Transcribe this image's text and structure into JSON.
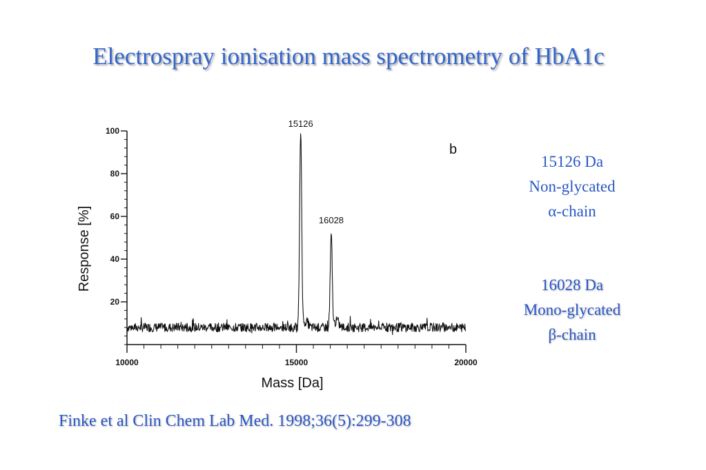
{
  "slide": {
    "title": "Electrospray ionisation mass spectrometry of HbA1c",
    "citation": "Finke et al Clin Chem Lab Med. 1998;36(5):299-308"
  },
  "annotations": [
    {
      "lines": [
        "15126 Da",
        "Non-glycated",
        "α-chain"
      ]
    },
    {
      "lines": [
        "16028 Da",
        "Mono-glycated",
        "β-chain"
      ]
    }
  ],
  "colors": {
    "accent": "#2a56c6",
    "title": "#3366cc",
    "trace": "#111111"
  },
  "chart_data": {
    "type": "line",
    "title": "",
    "panel_label": "b",
    "xlabel": "Mass [Da]",
    "ylabel": "Response [%]",
    "xlim": [
      10000,
      20000
    ],
    "ylim": [
      0,
      100
    ],
    "x_ticks": [
      10000,
      15000,
      20000
    ],
    "y_ticks": [
      20,
      40,
      60,
      80,
      100
    ],
    "baseline_percent": 8,
    "peaks": [
      {
        "mass": 15126,
        "response": 100,
        "label": "15126"
      },
      {
        "mass": 16028,
        "response": 51,
        "label": "16028"
      }
    ],
    "grid": false,
    "legend": "none"
  }
}
